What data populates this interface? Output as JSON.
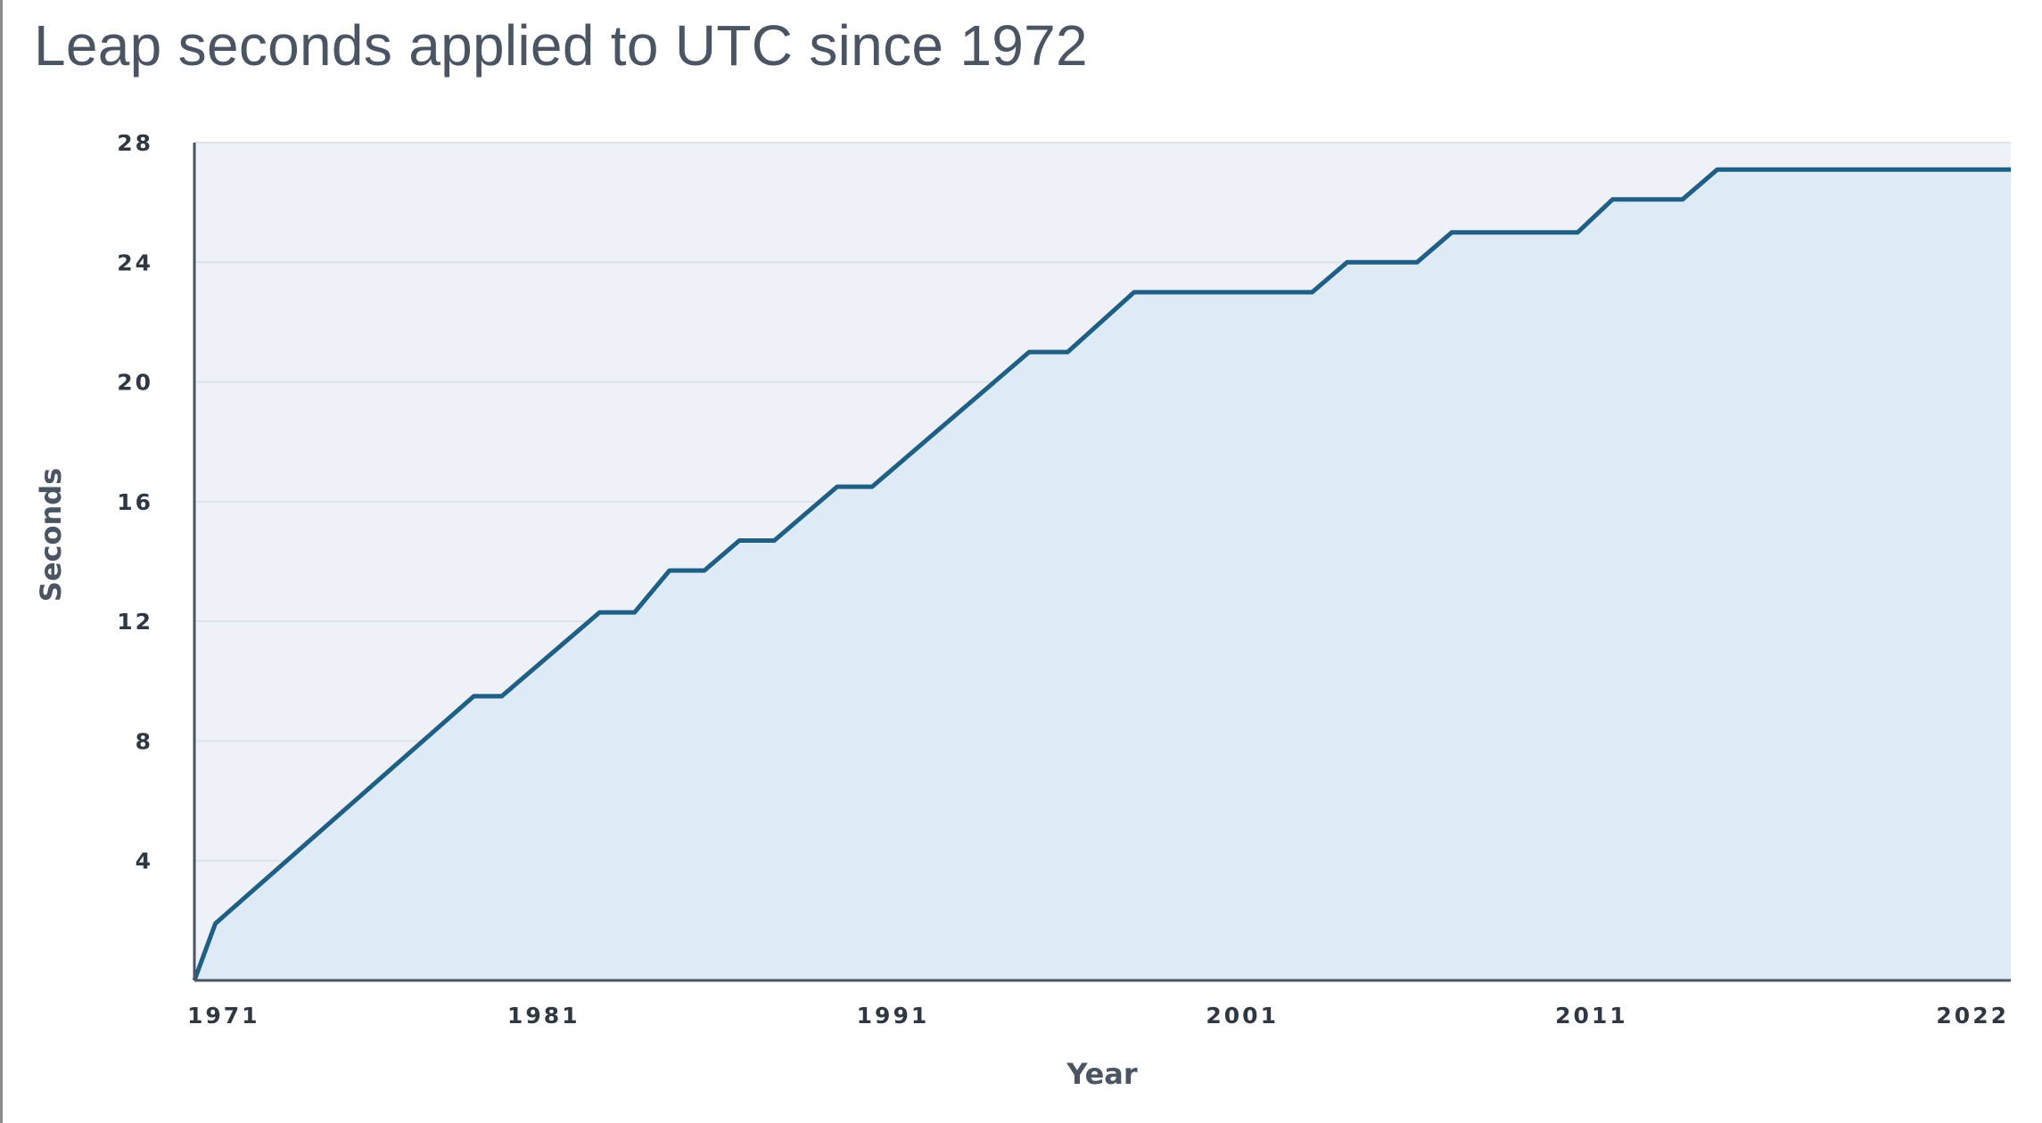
{
  "title": "Leap seconds applied to UTC since 1972",
  "chart_data": {
    "type": "area",
    "title": "Leap seconds applied to UTC since 1972",
    "xlabel": "Year",
    "ylabel": "Seconds",
    "xlim": [
      1971,
      2023
    ],
    "ylim": [
      0,
      28
    ],
    "x_ticks": [
      1971,
      1981,
      1991,
      2001,
      2011,
      2022
    ],
    "y_ticks": [
      4,
      8,
      12,
      16,
      20,
      24,
      28
    ],
    "grid": true,
    "legend": "none",
    "colors": {
      "line": "#1f5f85",
      "fill": "#deebf6",
      "plot_background": "#eef2f8",
      "grid": "#dde3ea",
      "axis": "#4a5462"
    },
    "series": [
      {
        "x": [
          1971.0,
          1971.6,
          1979.0,
          1979.8,
          1982.6,
          1983.6,
          1984.6,
          1985.6,
          1986.6,
          1987.6,
          1989.4,
          1990.4,
          1994.9,
          1996.0,
          1997.9,
          2003.0,
          2004.0,
          2006.0,
          2007.0,
          2010.6,
          2011.6,
          2013.6,
          2014.6,
          2023.0
        ],
        "y": [
          0,
          1.9,
          9.5,
          9.5,
          12.3,
          12.3,
          13.7,
          13.7,
          14.7,
          14.7,
          16.5,
          16.5,
          21.0,
          21.0,
          23.0,
          23.0,
          24.0,
          24.0,
          25.0,
          25.0,
          26.1,
          26.1,
          27.1,
          27.1
        ]
      }
    ]
  }
}
